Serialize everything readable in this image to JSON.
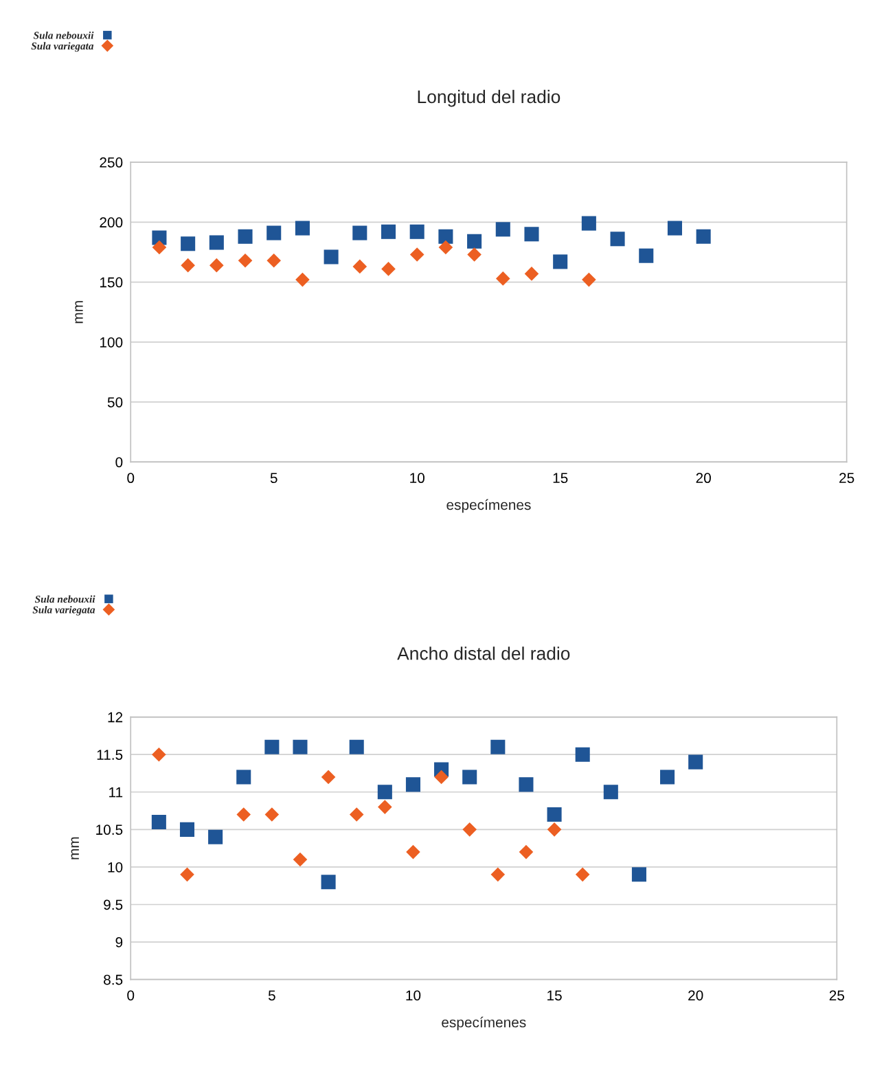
{
  "chart_data": [
    {
      "type": "scatter",
      "title": "Longitud del radio",
      "xlabel": "especímenes",
      "ylabel": "mm",
      "x": [
        1,
        2,
        3,
        4,
        5,
        6,
        7,
        8,
        9,
        10,
        11,
        12,
        13,
        14,
        15,
        16,
        17,
        18,
        19,
        20
      ],
      "series": [
        {
          "name": "Sula nebouxii",
          "color": "#1f5596",
          "marker": "square",
          "values": [
            187,
            182,
            183,
            188,
            191,
            195,
            171,
            191,
            192,
            192,
            188,
            184,
            194,
            190,
            167,
            199,
            186,
            172,
            195,
            188
          ]
        },
        {
          "name": "Sula variegata",
          "color": "#ec5f22",
          "marker": "diamond",
          "values": [
            179,
            164,
            164,
            168,
            168,
            152,
            null,
            163,
            161,
            173,
            179,
            173,
            153,
            157,
            null,
            152,
            null,
            null,
            null,
            null
          ]
        }
      ],
      "xlim": [
        0,
        25
      ],
      "xticks": [
        0,
        5,
        10,
        15,
        20,
        25
      ],
      "ylim": [
        0,
        250
      ],
      "yticks": [
        0,
        50,
        100,
        150,
        200,
        250
      ],
      "grid": "y",
      "legend": "top left"
    },
    {
      "type": "scatter",
      "title": "Ancho distal del radio",
      "xlabel": "especímenes",
      "ylabel": "mm",
      "x": [
        1,
        2,
        3,
        4,
        5,
        6,
        7,
        8,
        9,
        10,
        11,
        12,
        13,
        14,
        15,
        16,
        17,
        18,
        19,
        20
      ],
      "series": [
        {
          "name": "Sula nebouxii",
          "color": "#1f5596",
          "marker": "square",
          "values": [
            10.6,
            10.5,
            10.4,
            11.2,
            11.6,
            11.6,
            9.8,
            11.6,
            11.0,
            11.1,
            11.3,
            11.2,
            11.6,
            11.1,
            10.7,
            11.5,
            11.0,
            9.9,
            11.2,
            11.4
          ]
        },
        {
          "name": "Sula variegata",
          "color": "#ec5f22",
          "marker": "diamond",
          "values": [
            11.5,
            9.9,
            null,
            10.7,
            10.7,
            10.1,
            11.2,
            10.7,
            10.8,
            10.2,
            11.2,
            10.5,
            9.9,
            10.2,
            10.5,
            9.9,
            null,
            null,
            null,
            null
          ]
        }
      ],
      "xlim": [
        0,
        25
      ],
      "xticks": [
        0,
        5,
        10,
        15,
        20,
        25
      ],
      "ylim": [
        8.5,
        12
      ],
      "yticks": [
        8.5,
        9,
        9.5,
        10,
        10.5,
        11,
        11.5,
        12
      ],
      "grid": "y",
      "legend": "top left"
    }
  ]
}
